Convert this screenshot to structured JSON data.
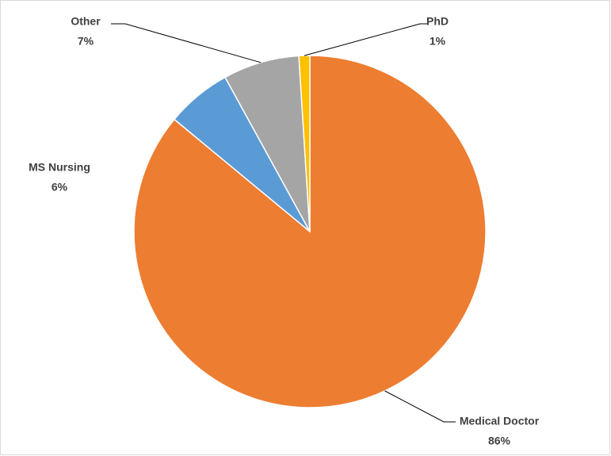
{
  "chart_data": {
    "type": "pie",
    "categories": [
      "Medical Doctor",
      "MS Nursing",
      "Other",
      "PhD"
    ],
    "values": [
      86,
      6,
      7,
      1
    ],
    "value_labels": [
      "86%",
      "6%",
      "7%",
      "1%"
    ],
    "colors": [
      "#ED7D31",
      "#5B9BD5",
      "#A5A5A5",
      "#FFC000"
    ]
  }
}
